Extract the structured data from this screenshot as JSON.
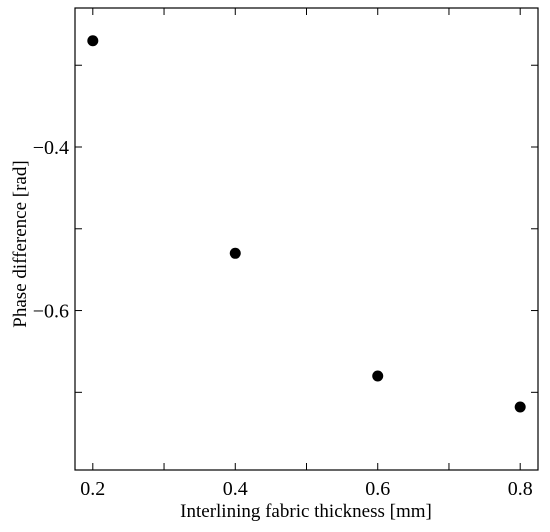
{
  "chart_data": {
    "type": "scatter",
    "xlabel": "Interlining fabric thickness [mm]",
    "ylabel": "Phase difference [rad]",
    "xlim": [
      0.175,
      0.825
    ],
    "ylim": [
      -0.795,
      -0.23
    ],
    "x_ticks": [
      0.2,
      0.3,
      0.4,
      0.5,
      0.6,
      0.7,
      0.8
    ],
    "x_tick_labels": [
      {
        "value": 0.2,
        "label": "0.2"
      },
      {
        "value": 0.4,
        "label": "0.4"
      },
      {
        "value": 0.6,
        "label": "0.6"
      },
      {
        "value": 0.8,
        "label": "0.8"
      }
    ],
    "y_ticks": [
      -0.3,
      -0.4,
      -0.5,
      -0.6,
      -0.7
    ],
    "y_tick_labels": [
      {
        "value": -0.4,
        "label": "−0.4"
      },
      {
        "value": -0.6,
        "label": "−0.6"
      }
    ],
    "grid": false,
    "legend": "none",
    "marker_color": "#000000",
    "points": [
      {
        "x": 0.2,
        "y": -0.27
      },
      {
        "x": 0.4,
        "y": -0.53
      },
      {
        "x": 0.6,
        "y": -0.68
      },
      {
        "x": 0.8,
        "y": -0.718
      }
    ]
  }
}
